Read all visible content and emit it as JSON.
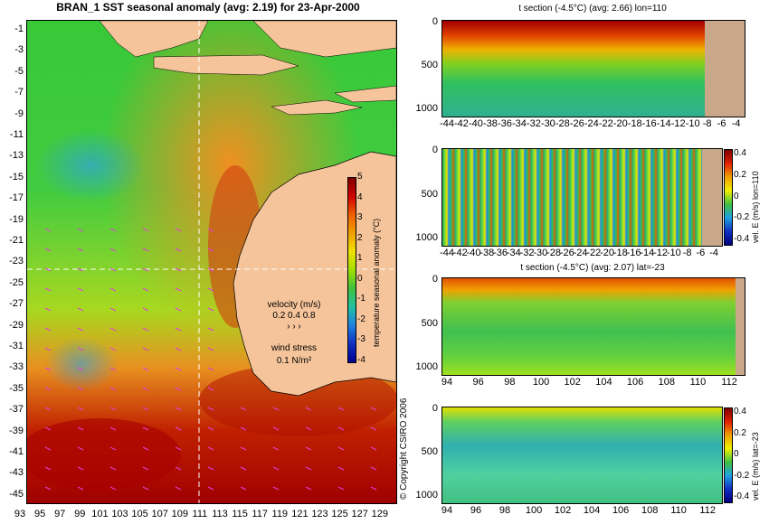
{
  "main_title": "BRAN_1 SST seasonal anomaly (avg: 2.19) for 23-Apr-2000",
  "map": {
    "lat_ticks": [
      "-1",
      "-3",
      "-5",
      "-7",
      "-9",
      "-11",
      "-13",
      "-15",
      "-17",
      "-19",
      "-21",
      "-23",
      "-25",
      "-27",
      "-29",
      "-31",
      "-33",
      "-35",
      "-37",
      "-39",
      "-41",
      "-43",
      "-45"
    ],
    "lon_ticks": [
      "93",
      "95",
      "97",
      "99",
      "101",
      "103",
      "105",
      "107",
      "109",
      "111",
      "113",
      "115",
      "117",
      "119",
      "121",
      "123",
      "125",
      "127",
      "129"
    ],
    "colorbar_ticks": [
      "5",
      "4",
      "3",
      "2",
      "1",
      "0",
      "-1",
      "-2",
      "-3",
      "-4"
    ],
    "colorbar_label": "temperature seasonal anomaly (°C)",
    "velocity_label": "velocity (m/s)",
    "velocity_scale": "0.2 0.4 0.8",
    "wind_label": "wind stress",
    "wind_scale": "0.1 N/m²",
    "copyright": "© Copyright CSIRO 2006"
  },
  "panels": [
    {
      "title": "t section (-4.5°C) (avg: 2.66) lon=110",
      "y_ticks": [
        "0",
        "500",
        "1000"
      ],
      "x_ticks": [
        "-44",
        "-42",
        "-40",
        "-38",
        "-36",
        "-34",
        "-32",
        "-30",
        "-28",
        "-26",
        "-24",
        "-22",
        "-20",
        "-18",
        "-16",
        "-14",
        "-12",
        "-10",
        "-8",
        "-6",
        "-4"
      ],
      "colorbar": false
    },
    {
      "title": "",
      "y_ticks": [
        "0",
        "500",
        "1000"
      ],
      "x_ticks": [
        "-44",
        "-42",
        "-40",
        "-38",
        "-36",
        "-34",
        "-32",
        "-30",
        "-28",
        "-26",
        "-24",
        "-22",
        "-20",
        "-18",
        "-16",
        "-14",
        "-12",
        "-10",
        "-8",
        "-6",
        "-4"
      ],
      "colorbar": true,
      "cb_ticks": [
        "0.4",
        "0.2",
        "0",
        "-0.2",
        "-0.4"
      ],
      "cb_label": "vel. E (m/s) lon=110"
    },
    {
      "title": "t section (-4.5°C) (avg: 2.07) lat=-23",
      "y_ticks": [
        "0",
        "500",
        "1000"
      ],
      "x_ticks": [
        "94",
        "96",
        "98",
        "100",
        "102",
        "104",
        "106",
        "108",
        "110",
        "112"
      ],
      "colorbar": false
    },
    {
      "title": "",
      "y_ticks": [
        "0",
        "500",
        "1000"
      ],
      "x_ticks": [
        "94",
        "96",
        "98",
        "100",
        "102",
        "104",
        "106",
        "108",
        "110",
        "112"
      ],
      "colorbar": true,
      "cb_ticks": [
        "0.4",
        "0.2",
        "0",
        "-0.2",
        "-0.4"
      ],
      "cb_label": "vel. E (m/s) lat=-23"
    }
  ],
  "colors": {
    "land": "#f5c49a",
    "section_land": "#c8a888",
    "arrow": "#e040e0"
  }
}
